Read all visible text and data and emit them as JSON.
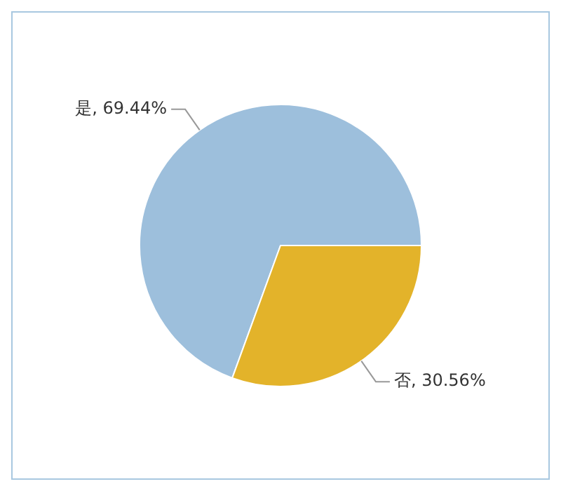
{
  "chart_data": {
    "type": "pie",
    "categories": [
      "是",
      "否"
    ],
    "values": [
      69.44,
      30.56
    ],
    "value_labels": [
      ", 69.44%",
      ", 30.56%"
    ],
    "colors": [
      "#9dbfdc",
      "#e3b32a"
    ],
    "legend": false
  }
}
